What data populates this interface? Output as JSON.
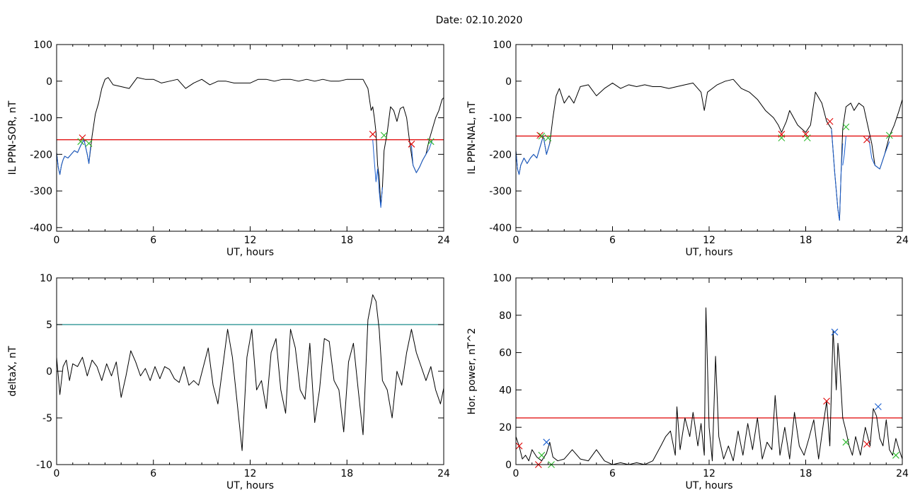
{
  "figure_title": "Date:  02.10.2020",
  "chart_data": [
    {
      "type": "line",
      "xlabel": "UT, hours",
      "ylabel": "IL PPN-SOR, nT",
      "xlim": [
        0,
        24
      ],
      "ylim": [
        -410,
        100
      ],
      "xticks": [
        0,
        6,
        12,
        18,
        24
      ],
      "yticks": [
        100,
        0,
        -100,
        -200,
        -300,
        -400
      ],
      "threshold": -160,
      "threshold_color": "#e00000",
      "series": [
        {
          "color": "#000000",
          "x": [
            0,
            0.1,
            0.2,
            0.3,
            0.4,
            0.5,
            0.7,
            0.9,
            1.1,
            1.3,
            1.5,
            1.7,
            1.9,
            2.0,
            2.2,
            2.4,
            2.6,
            2.8,
            3.0,
            3.2,
            3.5,
            4.0,
            4.5,
            5.0,
            5.5,
            6.0,
            6.5,
            7.0,
            7.5,
            8.0,
            8.5,
            9.0,
            9.5,
            10.0,
            10.5,
            11.0,
            11.5,
            12.0,
            12.5,
            13.0,
            13.5,
            14.0,
            14.5,
            15.0,
            15.5,
            16.0,
            16.5,
            17.0,
            17.5,
            18.0,
            18.5,
            19.0,
            19.3,
            19.5,
            19.6,
            19.7,
            19.8,
            19.9,
            20.0,
            20.1,
            20.2,
            20.3,
            20.5,
            20.7,
            20.9,
            21.1,
            21.3,
            21.5,
            21.7,
            21.9,
            22.1,
            22.3,
            22.5,
            22.7,
            22.9,
            23.1,
            23.3,
            23.5,
            23.7,
            23.9,
            24.0
          ],
          "y": [
            -195,
            -235,
            -255,
            -230,
            -215,
            -205,
            -210,
            -200,
            -190,
            -195,
            -175,
            -160,
            -200,
            -225,
            -150,
            -90,
            -60,
            -20,
            5,
            10,
            -10,
            -15,
            -20,
            10,
            5,
            5,
            -5,
            0,
            5,
            -20,
            -5,
            5,
            -10,
            0,
            0,
            -5,
            -5,
            -5,
            5,
            5,
            0,
            5,
            5,
            0,
            5,
            0,
            5,
            0,
            0,
            5,
            5,
            5,
            -20,
            -80,
            -70,
            -100,
            -140,
            -230,
            -260,
            -340,
            -290,
            -190,
            -140,
            -70,
            -80,
            -110,
            -75,
            -70,
            -100,
            -170,
            -230,
            -250,
            -235,
            -215,
            -200,
            -160,
            -130,
            -100,
            -80,
            -50,
            -45
          ]
        },
        {
          "color": "#1a5fd0",
          "x": [
            0,
            0.1,
            0.2,
            0.3,
            0.4,
            0.5,
            0.7,
            0.9,
            1.1,
            1.3,
            1.5,
            1.7,
            1.9,
            2.0,
            2.1
          ],
          "y": [
            -195,
            -235,
            -255,
            -230,
            -215,
            -205,
            -210,
            -200,
            -190,
            -195,
            -175,
            -160,
            -200,
            -225,
            -180
          ]
        },
        {
          "color": "#1a5fd0",
          "x": [
            19.6,
            19.7,
            19.8,
            19.9,
            20.0,
            20.1,
            20.2
          ],
          "y": [
            -160,
            -220,
            -275,
            -240,
            -300,
            -345,
            -290
          ]
        },
        {
          "color": "#1a5fd0",
          "x": [
            22.0,
            22.1,
            22.3,
            22.5,
            22.7,
            22.9,
            23.1,
            23.3
          ],
          "y": [
            -175,
            -230,
            -250,
            -235,
            -215,
            -200,
            -185,
            -160
          ]
        }
      ],
      "markers": [
        {
          "x": 1.6,
          "y": -155,
          "color": "#e00000"
        },
        {
          "x": 1.5,
          "y": -165,
          "color": "#2bb82b"
        },
        {
          "x": 2.0,
          "y": -170,
          "color": "#2bb82b"
        },
        {
          "x": 19.6,
          "y": -145,
          "color": "#e00000"
        },
        {
          "x": 20.3,
          "y": -148,
          "color": "#2bb82b"
        },
        {
          "x": 22.0,
          "y": -172,
          "color": "#e00000"
        },
        {
          "x": 23.2,
          "y": -165,
          "color": "#2bb82b"
        }
      ]
    },
    {
      "type": "line",
      "xlabel": "UT, hours",
      "ylabel": "IL PPN-NAL, nT",
      "xlim": [
        0,
        24
      ],
      "ylim": [
        -410,
        100
      ],
      "xticks": [
        0,
        6,
        12,
        18,
        24
      ],
      "yticks": [
        100,
        0,
        -100,
        -200,
        -300,
        -400
      ],
      "threshold": -150,
      "threshold_color": "#e00000",
      "series": [
        {
          "color": "#000000",
          "x": [
            0,
            0.1,
            0.2,
            0.3,
            0.5,
            0.7,
            0.9,
            1.1,
            1.3,
            1.5,
            1.7,
            1.9,
            2.1,
            2.3,
            2.5,
            2.7,
            3.0,
            3.3,
            3.6,
            4.0,
            4.5,
            5.0,
            5.5,
            6.0,
            6.5,
            7.0,
            7.5,
            8.0,
            8.5,
            9.0,
            9.5,
            10.0,
            10.5,
            11.0,
            11.5,
            11.7,
            11.9,
            12.5,
            13.0,
            13.5,
            14.0,
            14.5,
            15.0,
            15.5,
            16.0,
            16.3,
            16.5,
            16.8,
            17.0,
            17.5,
            18.0,
            18.3,
            18.6,
            19.0,
            19.3,
            19.6,
            19.8,
            20.0,
            20.1,
            20.2,
            20.3,
            20.5,
            20.8,
            21.0,
            21.3,
            21.6,
            21.9,
            22.1,
            22.3,
            22.6,
            22.9,
            23.2,
            23.5,
            23.8,
            24.0
          ],
          "y": [
            -190,
            -240,
            -255,
            -230,
            -210,
            -225,
            -210,
            -200,
            -210,
            -180,
            -150,
            -200,
            -170,
            -100,
            -40,
            -20,
            -60,
            -40,
            -60,
            -15,
            -10,
            -40,
            -20,
            -5,
            -20,
            -10,
            -15,
            -10,
            -15,
            -15,
            -20,
            -15,
            -10,
            -5,
            -30,
            -80,
            -30,
            -10,
            0,
            5,
            -20,
            -30,
            -50,
            -80,
            -100,
            -120,
            -140,
            -110,
            -80,
            -120,
            -140,
            -120,
            -30,
            -60,
            -110,
            -130,
            -250,
            -350,
            -380,
            -250,
            -130,
            -70,
            -60,
            -80,
            -60,
            -70,
            -130,
            -170,
            -230,
            -240,
            -200,
            -150,
            -120,
            -80,
            -50
          ]
        },
        {
          "color": "#1a5fd0",
          "x": [
            0,
            0.1,
            0.2,
            0.3,
            0.5,
            0.7,
            0.9,
            1.1,
            1.3,
            1.5,
            1.7,
            1.9,
            2.1
          ],
          "y": [
            -190,
            -240,
            -255,
            -230,
            -210,
            -225,
            -210,
            -200,
            -210,
            -180,
            -150,
            -200,
            -170
          ]
        },
        {
          "color": "#1a5fd0",
          "x": [
            19.6,
            19.8,
            20.0,
            20.1,
            20.2,
            20.3
          ],
          "y": [
            -130,
            -250,
            -350,
            -380,
            -250,
            -170
          ]
        },
        {
          "color": "#1a5fd0",
          "x": [
            20.3,
            20.4,
            20.5
          ],
          "y": [
            -230,
            -200,
            -150
          ]
        },
        {
          "color": "#1a5fd0",
          "x": [
            21.9,
            22.1,
            22.3,
            22.6,
            22.9,
            23.2
          ],
          "y": [
            -150,
            -210,
            -230,
            -240,
            -200,
            -165
          ]
        }
      ],
      "markers": [
        {
          "x": 1.5,
          "y": -148,
          "color": "#e00000"
        },
        {
          "x": 1.6,
          "y": -150,
          "color": "#2bb82b"
        },
        {
          "x": 2.0,
          "y": -155,
          "color": "#2bb82b"
        },
        {
          "x": 16.5,
          "y": -145,
          "color": "#e00000"
        },
        {
          "x": 16.5,
          "y": -155,
          "color": "#2bb82b"
        },
        {
          "x": 18.0,
          "y": -145,
          "color": "#e00000"
        },
        {
          "x": 18.1,
          "y": -155,
          "color": "#2bb82b"
        },
        {
          "x": 19.5,
          "y": -110,
          "color": "#e00000"
        },
        {
          "x": 20.5,
          "y": -125,
          "color": "#2bb82b"
        },
        {
          "x": 21.8,
          "y": -160,
          "color": "#e00000"
        },
        {
          "x": 23.2,
          "y": -148,
          "color": "#2bb82b"
        }
      ]
    },
    {
      "type": "line",
      "xlabel": "UT, hours",
      "ylabel": "deltaX, nT",
      "xlim": [
        0,
        24
      ],
      "ylim": [
        -10,
        10
      ],
      "xticks": [
        0,
        6,
        12,
        18,
        24
      ],
      "yticks": [
        10,
        5,
        0,
        -5,
        -10
      ],
      "threshold": 5,
      "threshold_color": "#1a8a8a",
      "series": [
        {
          "color": "#000000",
          "x": [
            0,
            0.2,
            0.4,
            0.6,
            0.8,
            1.0,
            1.3,
            1.6,
            1.9,
            2.2,
            2.5,
            2.8,
            3.1,
            3.4,
            3.7,
            4.0,
            4.3,
            4.6,
            4.9,
            5.2,
            5.5,
            5.8,
            6.1,
            6.4,
            6.7,
            7.0,
            7.3,
            7.6,
            7.9,
            8.2,
            8.5,
            8.8,
            9.1,
            9.4,
            9.7,
            10.0,
            10.3,
            10.6,
            10.9,
            11.2,
            11.5,
            11.8,
            12.1,
            12.4,
            12.7,
            13.0,
            13.3,
            13.6,
            13.9,
            14.2,
            14.5,
            14.8,
            15.1,
            15.4,
            15.7,
            16.0,
            16.3,
            16.6,
            16.9,
            17.2,
            17.5,
            17.8,
            18.1,
            18.4,
            18.7,
            19.0,
            19.3,
            19.6,
            19.8,
            20.0,
            20.2,
            20.5,
            20.8,
            21.1,
            21.4,
            21.7,
            22.0,
            22.3,
            22.6,
            22.9,
            23.2,
            23.5,
            23.8,
            24.0
          ],
          "y": [
            1.5,
            -2.5,
            0.5,
            1.2,
            -1,
            0.8,
            0.5,
            1.5,
            -0.5,
            1.2,
            0.5,
            -1,
            0.8,
            -0.5,
            1,
            -2.8,
            -0.5,
            2.2,
            1,
            -0.5,
            0.3,
            -1,
            0.5,
            -0.8,
            0.5,
            0.2,
            -0.8,
            -1.2,
            0.5,
            -1.5,
            -1,
            -1.5,
            0.5,
            2.5,
            -1.5,
            -3.5,
            0.5,
            4.5,
            1.5,
            -3.5,
            -8.5,
            1.5,
            4.5,
            -2,
            -1,
            -4,
            2,
            3.5,
            -2,
            -4.5,
            4.5,
            2.5,
            -2,
            -3,
            3,
            -5.5,
            -2,
            3.5,
            3.2,
            -1,
            -2,
            -6.5,
            1,
            3,
            -2,
            -6.8,
            5.5,
            8.2,
            7.5,
            4.5,
            -1,
            -2,
            -5,
            0,
            -1.5,
            2,
            4.5,
            2,
            0.5,
            -1,
            0.5,
            -2,
            -3.5,
            -1.8
          ]
        }
      ],
      "markers": []
    },
    {
      "type": "line",
      "xlabel": "UT, hours",
      "ylabel": "Hor. power, nT^2",
      "xlim": [
        0,
        24
      ],
      "ylim": [
        0,
        100
      ],
      "xticks": [
        0,
        6,
        12,
        18,
        24
      ],
      "yticks": [
        100,
        80,
        60,
        40,
        20,
        0
      ],
      "threshold": 25,
      "threshold_color": "#e00000",
      "series": [
        {
          "color": "#000000",
          "x": [
            0,
            0.2,
            0.4,
            0.6,
            0.8,
            1.0,
            1.3,
            1.6,
            1.9,
            2.1,
            2.3,
            2.6,
            3.0,
            3.5,
            4.0,
            4.5,
            5.0,
            5.5,
            6.0,
            6.5,
            7.0,
            7.5,
            8.0,
            8.5,
            9.0,
            9.3,
            9.6,
            9.9,
            10.0,
            10.2,
            10.5,
            10.8,
            11.0,
            11.3,
            11.5,
            11.7,
            11.8,
            12.0,
            12.2,
            12.4,
            12.6,
            12.9,
            13.2,
            13.5,
            13.8,
            14.1,
            14.4,
            14.7,
            15.0,
            15.3,
            15.6,
            15.9,
            16.1,
            16.4,
            16.7,
            17.0,
            17.3,
            17.6,
            17.9,
            18.2,
            18.5,
            18.8,
            19.1,
            19.3,
            19.5,
            19.7,
            19.9,
            20.0,
            20.1,
            20.3,
            20.5,
            20.7,
            20.9,
            21.1,
            21.4,
            21.7,
            22.0,
            22.2,
            22.4,
            22.6,
            22.8,
            23.0,
            23.2,
            23.4,
            23.6,
            23.8,
            24.0
          ],
          "y": [
            15,
            10,
            3,
            5,
            2,
            8,
            4,
            2,
            6,
            12,
            4,
            2,
            3,
            8,
            3,
            2,
            8,
            2,
            0,
            1,
            0,
            1,
            0,
            2,
            10,
            15,
            18,
            5,
            31,
            8,
            25,
            15,
            28,
            10,
            22,
            5,
            84,
            20,
            2,
            58,
            15,
            3,
            10,
            2,
            18,
            5,
            22,
            8,
            25,
            3,
            12,
            8,
            37,
            5,
            20,
            3,
            28,
            10,
            5,
            14,
            24,
            3,
            22,
            34,
            10,
            72,
            40,
            65,
            55,
            25,
            18,
            10,
            5,
            15,
            5,
            20,
            10,
            30,
            26,
            14,
            10,
            24,
            8,
            5,
            14,
            8,
            3
          ]
        }
      ],
      "markers": [
        {
          "x": 0.2,
          "y": 10,
          "color": "#e00000"
        },
        {
          "x": 1.4,
          "y": 0,
          "color": "#e00000"
        },
        {
          "x": 1.6,
          "y": 5,
          "color": "#2bb82b"
        },
        {
          "x": 1.9,
          "y": 12,
          "color": "#1a5fd0"
        },
        {
          "x": 2.2,
          "y": 0,
          "color": "#2bb82b"
        },
        {
          "x": 19.3,
          "y": 34,
          "color": "#e00000"
        },
        {
          "x": 19.8,
          "y": 71,
          "color": "#1a5fd0"
        },
        {
          "x": 20.5,
          "y": 12,
          "color": "#2bb82b"
        },
        {
          "x": 21.8,
          "y": 11,
          "color": "#e00000"
        },
        {
          "x": 22.5,
          "y": 31,
          "color": "#1a5fd0"
        },
        {
          "x": 23.6,
          "y": 5,
          "color": "#2bb82b"
        }
      ]
    }
  ]
}
